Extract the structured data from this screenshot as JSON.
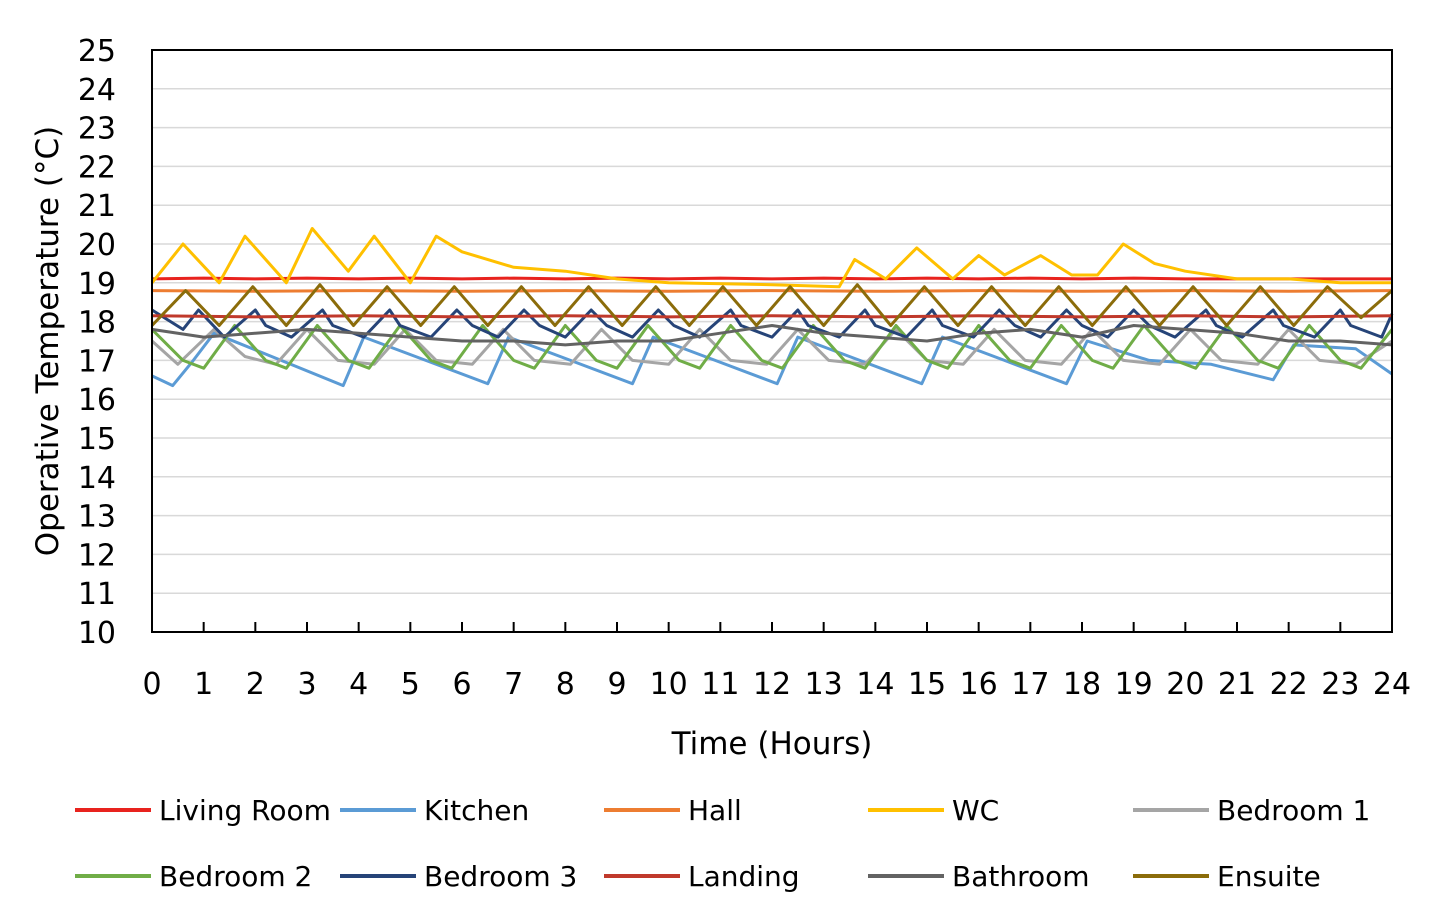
{
  "chart_data": {
    "type": "line",
    "title": "",
    "xlabel": "Time (Hours)",
    "ylabel": "Operative Temperature (°C)",
    "xlim": [
      0,
      24
    ],
    "ylim": [
      10,
      25
    ],
    "x_ticks": [
      0,
      1,
      2,
      3,
      4,
      5,
      6,
      7,
      8,
      9,
      10,
      11,
      12,
      13,
      14,
      15,
      16,
      17,
      18,
      19,
      20,
      21,
      22,
      23,
      24
    ],
    "y_ticks": [
      10,
      11,
      12,
      13,
      14,
      15,
      16,
      17,
      18,
      19,
      20,
      21,
      22,
      23,
      24,
      25
    ],
    "grid": "horizontal",
    "legend_position": "bottom",
    "series": [
      {
        "name": "Living Room",
        "color": "#e8231e",
        "x": [
          0,
          1,
          2,
          3,
          4,
          5,
          6,
          7,
          8,
          9,
          10,
          11,
          12,
          13,
          14,
          15,
          16,
          17,
          18,
          19,
          20,
          21,
          22,
          23,
          24
        ],
        "y": [
          19.1,
          19.12,
          19.1,
          19.12,
          19.1,
          19.12,
          19.1,
          19.12,
          19.1,
          19.12,
          19.1,
          19.12,
          19.1,
          19.12,
          19.1,
          19.12,
          19.1,
          19.12,
          19.1,
          19.12,
          19.1,
          19.1,
          19.1,
          19.1,
          19.1
        ]
      },
      {
        "name": "Kitchen",
        "color": "#5b9bd5",
        "x": [
          0,
          0.4,
          0.8,
          1.2,
          2.5,
          3.7,
          4.1,
          5.3,
          6.5,
          6.9,
          8.1,
          9.3,
          9.7,
          10.9,
          12.1,
          12.5,
          13.7,
          14.9,
          15.3,
          16.5,
          17.7,
          18.1,
          19.3,
          20.5,
          21.7,
          22.1,
          23.3,
          24
        ],
        "y": [
          16.6,
          16.35,
          17.0,
          17.7,
          17.0,
          16.35,
          17.6,
          17.0,
          16.4,
          17.6,
          17.0,
          16.4,
          17.6,
          17.0,
          16.4,
          17.6,
          17.0,
          16.4,
          17.6,
          17.0,
          16.4,
          17.5,
          17.0,
          16.9,
          16.5,
          17.4,
          17.3,
          16.65
        ]
      },
      {
        "name": "Hall",
        "color": "#ed7d31",
        "x": [
          0,
          2,
          4,
          6,
          8,
          10,
          12,
          14,
          16,
          18,
          20,
          22,
          24
        ],
        "y": [
          18.8,
          18.78,
          18.8,
          18.78,
          18.8,
          18.78,
          18.8,
          18.78,
          18.8,
          18.78,
          18.8,
          18.78,
          18.8
        ]
      },
      {
        "name": "WC",
        "color": "#ffc000",
        "x": [
          0,
          0.6,
          1.3,
          1.8,
          2.6,
          3.1,
          3.8,
          4.3,
          5.0,
          5.5,
          6.0,
          7.0,
          8.0,
          9.0,
          10.0,
          12.0,
          13.3,
          13.6,
          14.2,
          14.8,
          15.5,
          16.0,
          16.5,
          17.2,
          17.8,
          18.3,
          18.8,
          19.4,
          20.0,
          21.0,
          22.0,
          23.0,
          24.0
        ],
        "y": [
          19.0,
          20.0,
          19.0,
          20.2,
          19.0,
          20.4,
          19.3,
          20.2,
          19.0,
          20.2,
          19.8,
          19.4,
          19.3,
          19.1,
          19.0,
          18.95,
          18.9,
          19.6,
          19.1,
          19.9,
          19.1,
          19.7,
          19.2,
          19.7,
          19.2,
          19.2,
          20.0,
          19.5,
          19.3,
          19.1,
          19.1,
          19.0,
          19.0
        ]
      },
      {
        "name": "Bedroom 1",
        "color": "#a5a5a5",
        "x": [
          0,
          0.5,
          1.2,
          1.8,
          2.4,
          3.0,
          3.6,
          4.3,
          4.9,
          5.5,
          6.2,
          6.8,
          7.4,
          8.1,
          8.7,
          9.3,
          10.0,
          10.6,
          11.2,
          11.9,
          12.5,
          13.1,
          13.8,
          14.4,
          15.0,
          15.7,
          16.3,
          16.9,
          17.6,
          18.2,
          18.8,
          19.5,
          20.1,
          20.7,
          21.4,
          22.0,
          22.6,
          23.3,
          24
        ],
        "y": [
          17.5,
          16.9,
          17.8,
          17.1,
          16.9,
          17.8,
          17.0,
          16.9,
          17.8,
          17.0,
          16.9,
          17.8,
          17.0,
          16.9,
          17.8,
          17.0,
          16.9,
          17.8,
          17.0,
          16.9,
          17.8,
          17.0,
          16.9,
          17.8,
          17.0,
          16.9,
          17.8,
          17.0,
          16.9,
          17.8,
          17.0,
          16.9,
          17.8,
          17.0,
          16.9,
          17.8,
          17.0,
          16.9,
          17.5
        ]
      },
      {
        "name": "Bedroom 2",
        "color": "#70ad47",
        "x": [
          0,
          0.6,
          1.0,
          1.6,
          2.2,
          2.6,
          3.2,
          3.8,
          4.2,
          4.8,
          5.4,
          5.8,
          6.4,
          7.0,
          7.4,
          8.0,
          8.6,
          9.0,
          9.6,
          10.2,
          10.6,
          11.2,
          11.8,
          12.2,
          12.8,
          13.4,
          13.8,
          14.4,
          15.0,
          15.4,
          16.0,
          16.6,
          17.0,
          17.6,
          18.2,
          18.6,
          19.2,
          19.8,
          20.2,
          20.8,
          21.4,
          21.8,
          22.4,
          23.0,
          23.4,
          24
        ],
        "y": [
          17.8,
          17.0,
          16.8,
          17.9,
          17.0,
          16.8,
          17.9,
          17.0,
          16.8,
          17.9,
          17.0,
          16.8,
          17.9,
          17.0,
          16.8,
          17.9,
          17.0,
          16.8,
          17.9,
          17.0,
          16.8,
          17.9,
          17.0,
          16.8,
          17.9,
          17.0,
          16.8,
          17.9,
          17.0,
          16.8,
          17.9,
          17.0,
          16.8,
          17.9,
          17.0,
          16.8,
          17.9,
          17.0,
          16.8,
          17.9,
          17.0,
          16.8,
          17.9,
          17.0,
          16.8,
          17.8
        ]
      },
      {
        "name": "Bedroom 3",
        "color": "#264478",
        "x": [
          0,
          0.6,
          0.9,
          1.4,
          2.0,
          2.2,
          2.7,
          3.3,
          3.5,
          4.1,
          4.6,
          4.8,
          5.4,
          5.9,
          6.2,
          6.7,
          7.2,
          7.5,
          8.0,
          8.5,
          8.8,
          9.3,
          9.8,
          10.1,
          10.6,
          11.2,
          11.4,
          12.0,
          12.5,
          12.7,
          13.3,
          13.8,
          14.0,
          14.6,
          15.1,
          15.3,
          15.9,
          16.4,
          16.7,
          17.2,
          17.7,
          18.0,
          18.5,
          19.0,
          19.3,
          19.8,
          20.4,
          20.6,
          21.1,
          21.7,
          21.9,
          22.5,
          23.0,
          23.2,
          23.8,
          24
        ],
        "y": [
          18.3,
          17.8,
          18.3,
          17.6,
          18.3,
          17.9,
          17.6,
          18.3,
          17.9,
          17.6,
          18.3,
          17.9,
          17.6,
          18.3,
          17.9,
          17.6,
          18.3,
          17.9,
          17.6,
          18.3,
          17.9,
          17.6,
          18.3,
          17.9,
          17.6,
          18.3,
          17.9,
          17.6,
          18.3,
          17.9,
          17.6,
          18.3,
          17.9,
          17.6,
          18.3,
          17.9,
          17.6,
          18.3,
          17.9,
          17.6,
          18.3,
          17.9,
          17.6,
          18.3,
          17.9,
          17.6,
          18.3,
          17.9,
          17.6,
          18.3,
          17.9,
          17.6,
          18.3,
          17.9,
          17.6,
          18.2
        ]
      },
      {
        "name": "Landing",
        "color": "#c0392b",
        "x": [
          0,
          2,
          4,
          6,
          8,
          10,
          12,
          14,
          16,
          18,
          20,
          22,
          24
        ],
        "y": [
          18.15,
          18.12,
          18.15,
          18.12,
          18.15,
          18.12,
          18.15,
          18.12,
          18.15,
          18.12,
          18.15,
          18.12,
          18.15
        ]
      },
      {
        "name": "Bathroom",
        "color": "#636363",
        "x": [
          0,
          1,
          2,
          3,
          4,
          5,
          6,
          7,
          8,
          9,
          10,
          11,
          12,
          13,
          14,
          15,
          16,
          17,
          18,
          19,
          20,
          21,
          22,
          23,
          24
        ],
        "y": [
          17.8,
          17.6,
          17.7,
          17.8,
          17.7,
          17.6,
          17.5,
          17.5,
          17.4,
          17.5,
          17.5,
          17.7,
          17.9,
          17.7,
          17.6,
          17.5,
          17.7,
          17.8,
          17.6,
          17.9,
          17.8,
          17.7,
          17.5,
          17.5,
          17.4
        ]
      },
      {
        "name": "Ensuite",
        "color": "#8b6c0a",
        "x": [
          0,
          0.65,
          1.3,
          1.95,
          2.6,
          3.25,
          3.9,
          4.55,
          5.2,
          5.85,
          6.5,
          7.15,
          7.8,
          8.45,
          9.1,
          9.75,
          10.4,
          11.05,
          11.7,
          12.35,
          13.0,
          13.65,
          14.3,
          14.95,
          15.6,
          16.25,
          16.9,
          17.55,
          18.2,
          18.85,
          19.5,
          20.15,
          20.8,
          21.45,
          22.1,
          22.75,
          23.4,
          24
        ],
        "y": [
          17.9,
          18.8,
          17.9,
          18.9,
          17.9,
          18.95,
          17.9,
          18.9,
          17.9,
          18.9,
          17.9,
          18.9,
          17.9,
          18.9,
          17.9,
          18.9,
          17.9,
          18.9,
          17.9,
          18.9,
          17.9,
          18.95,
          17.9,
          18.9,
          17.9,
          18.9,
          17.9,
          18.9,
          17.9,
          18.9,
          17.9,
          18.9,
          17.9,
          18.9,
          17.9,
          18.9,
          18.1,
          18.8
        ]
      }
    ]
  }
}
